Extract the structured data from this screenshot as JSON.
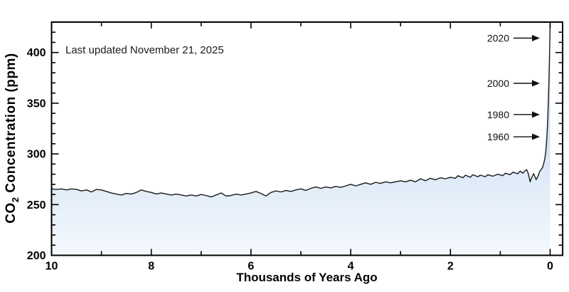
{
  "figure": {
    "last_updated_note": "Last updated November 21, 2025"
  },
  "chart_data": {
    "type": "area",
    "title": "",
    "xlabel": "Thousands of Years Ago",
    "ylabel": "CO2 Concentration (ppm)",
    "ylabel_parts": {
      "pre": "CO",
      "sub": "2",
      "post": " Concentration (ppm)"
    },
    "xlim": [
      10,
      -0.25
    ],
    "ylim": [
      200,
      430
    ],
    "x_major_ticks": [
      10,
      8,
      6,
      4,
      2,
      0
    ],
    "x_minor_ticks": [
      9,
      7,
      5,
      3,
      1
    ],
    "y_major_ticks": [
      200,
      250,
      300,
      350,
      400
    ],
    "y_minor_step": 10,
    "grid": "off",
    "legend": "none",
    "line_color": "#1a1a1a",
    "fill_top_color": "#b4d0ed",
    "fill_bottom_color": "#f4f8fd",
    "annotations": [
      {
        "label": "2020",
        "ppm": 414.2
      },
      {
        "label": "2000",
        "ppm": 369.6
      },
      {
        "label": "1980",
        "ppm": 338.8
      },
      {
        "label": "1960",
        "ppm": 316.9
      }
    ],
    "series": [
      {
        "name": "CO2 concentration (ppm)",
        "x_units": "thousands of years ago",
        "points": [
          [
            10,
            265.5
          ],
          [
            9.9,
            265
          ],
          [
            9.8,
            265.5
          ],
          [
            9.7,
            264.5
          ],
          [
            9.6,
            265.5
          ],
          [
            9.5,
            265
          ],
          [
            9.4,
            263.5
          ],
          [
            9.3,
            264.5
          ],
          [
            9.2,
            262.5
          ],
          [
            9.1,
            265
          ],
          [
            9,
            264.5
          ],
          [
            8.9,
            263
          ],
          [
            8.8,
            261.5
          ],
          [
            8.7,
            260.5
          ],
          [
            8.6,
            259.5
          ],
          [
            8.5,
            261
          ],
          [
            8.4,
            260.5
          ],
          [
            8.3,
            262
          ],
          [
            8.2,
            264.5
          ],
          [
            8.1,
            263
          ],
          [
            8,
            262
          ],
          [
            7.9,
            260.5
          ],
          [
            7.8,
            261.5
          ],
          [
            7.7,
            260.5
          ],
          [
            7.6,
            259.5
          ],
          [
            7.5,
            260.5
          ],
          [
            7.4,
            259.5
          ],
          [
            7.3,
            258.5
          ],
          [
            7.2,
            259.5
          ],
          [
            7.1,
            258.5
          ],
          [
            7,
            260
          ],
          [
            6.9,
            259
          ],
          [
            6.8,
            257.5
          ],
          [
            6.7,
            259.5
          ],
          [
            6.6,
            261.5
          ],
          [
            6.5,
            258.5
          ],
          [
            6.4,
            259
          ],
          [
            6.3,
            260.5
          ],
          [
            6.2,
            259.5
          ],
          [
            6.1,
            260.5
          ],
          [
            6,
            261.5
          ],
          [
            5.9,
            263
          ],
          [
            5.8,
            261
          ],
          [
            5.7,
            258.5
          ],
          [
            5.6,
            262
          ],
          [
            5.5,
            263.5
          ],
          [
            5.4,
            262.5
          ],
          [
            5.3,
            264
          ],
          [
            5.2,
            263
          ],
          [
            5.1,
            264.5
          ],
          [
            5,
            265.5
          ],
          [
            4.9,
            264
          ],
          [
            4.8,
            266
          ],
          [
            4.7,
            267.5
          ],
          [
            4.6,
            266
          ],
          [
            4.5,
            267.5
          ],
          [
            4.4,
            266.5
          ],
          [
            4.3,
            268
          ],
          [
            4.2,
            267
          ],
          [
            4.1,
            268.5
          ],
          [
            4,
            270
          ],
          [
            3.9,
            268.5
          ],
          [
            3.8,
            270
          ],
          [
            3.7,
            271.5
          ],
          [
            3.6,
            270
          ],
          [
            3.5,
            272
          ],
          [
            3.4,
            271
          ],
          [
            3.3,
            272.5
          ],
          [
            3.2,
            271.5
          ],
          [
            3.1,
            272.5
          ],
          [
            3,
            273.5
          ],
          [
            2.9,
            272.5
          ],
          [
            2.8,
            274
          ],
          [
            2.7,
            272.5
          ],
          [
            2.6,
            275.5
          ],
          [
            2.5,
            273.5
          ],
          [
            2.4,
            276
          ],
          [
            2.3,
            274.5
          ],
          [
            2.2,
            276.5
          ],
          [
            2.1,
            275.5
          ],
          [
            2,
            277
          ],
          [
            1.9,
            276
          ],
          [
            1.85,
            278.5
          ],
          [
            1.75,
            276.5
          ],
          [
            1.7,
            279
          ],
          [
            1.6,
            277
          ],
          [
            1.55,
            279.5
          ],
          [
            1.45,
            277.5
          ],
          [
            1.4,
            279
          ],
          [
            1.3,
            277.5
          ],
          [
            1.25,
            279.5
          ],
          [
            1.15,
            278
          ],
          [
            1.05,
            280
          ],
          [
            0.95,
            278.5
          ],
          [
            0.9,
            281
          ],
          [
            0.8,
            279.5
          ],
          [
            0.75,
            282
          ],
          [
            0.65,
            280.5
          ],
          [
            0.6,
            283
          ],
          [
            0.55,
            281
          ],
          [
            0.5,
            283.5
          ],
          [
            0.47,
            284.5
          ],
          [
            0.44,
            281
          ],
          [
            0.42,
            277
          ],
          [
            0.4,
            272.5
          ],
          [
            0.38,
            275.5
          ],
          [
            0.35,
            278.5
          ],
          [
            0.33,
            280.5
          ],
          [
            0.3,
            277
          ],
          [
            0.28,
            274.5
          ],
          [
            0.26,
            276.5
          ],
          [
            0.24,
            278.5
          ],
          [
            0.22,
            281.5
          ],
          [
            0.2,
            283.5
          ],
          [
            0.18,
            284.5
          ],
          [
            0.15,
            287
          ],
          [
            0.13,
            290.5
          ],
          [
            0.11,
            294.5
          ],
          [
            0.095,
            299
          ],
          [
            0.085,
            303.5
          ],
          [
            0.075,
            309
          ],
          [
            0.065,
            317
          ],
          [
            0.055,
            326
          ],
          [
            0.045,
            339
          ],
          [
            0.035,
            354
          ],
          [
            0.025,
            369.5
          ],
          [
            0.015,
            390
          ],
          [
            0.005,
            414
          ],
          [
            0.002,
            422
          ],
          [
            0,
            429
          ]
        ]
      }
    ]
  }
}
